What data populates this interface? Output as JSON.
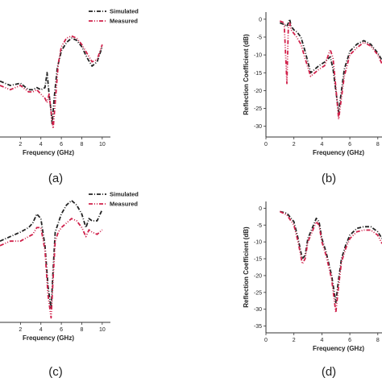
{
  "colors": {
    "simulated": "#222222",
    "measured": "#d0204a"
  },
  "chart_data": [
    {
      "panel": "(a)",
      "type": "line",
      "xlabel": "Frequency (GHz)",
      "ylabel": "",
      "xticks": [
        "2",
        "4",
        "6",
        "8",
        "10"
      ],
      "yticks": [],
      "xlim": [
        0.0,
        10.8
      ],
      "ylim": [
        -30,
        0
      ],
      "legend": {
        "placement": "top-right",
        "entries": [
          "Simulated",
          "Measured"
        ]
      },
      "series": [
        {
          "name": "Simulated",
          "x": [
            0.0,
            1.0,
            2.0,
            2.8,
            3.2,
            3.6,
            4.0,
            4.4,
            4.6,
            4.8,
            5.0,
            5.1,
            5.3,
            5.6,
            6.0,
            6.5,
            7.0,
            7.5,
            8.0,
            8.5,
            9.0,
            9.5,
            10.0
          ],
          "y": [
            -17.0,
            -18.0,
            -17.5,
            -19.0,
            -19.0,
            -18.5,
            -19.0,
            -18.5,
            -15.0,
            -20.0,
            -24.0,
            -27.0,
            -21.0,
            -14.0,
            -10.0,
            -8.0,
            -7.0,
            -7.5,
            -9.0,
            -11.5,
            -13.5,
            -12.5,
            -9.0
          ]
        },
        {
          "name": "Measured",
          "x": [
            0.0,
            1.0,
            2.0,
            2.8,
            3.2,
            3.6,
            4.0,
            4.4,
            4.6,
            4.8,
            5.0,
            5.2,
            5.4,
            5.7,
            6.0,
            6.5,
            7.0,
            7.5,
            8.0,
            8.5,
            9.0,
            9.5,
            10.0
          ],
          "y": [
            -18.0,
            -19.0,
            -18.0,
            -19.5,
            -19.5,
            -19.0,
            -20.0,
            -21.0,
            -22.0,
            -20.0,
            -24.0,
            -28.0,
            -22.0,
            -13.0,
            -9.0,
            -7.0,
            -6.5,
            -7.0,
            -8.5,
            -10.5,
            -12.5,
            -12.0,
            -8.5
          ]
        }
      ]
    },
    {
      "panel": "(b)",
      "type": "line",
      "xlabel": "Frequency (GHz)",
      "ylabel": "Reflection Coefficient (dB)",
      "xticks": [
        "0",
        "2",
        "4",
        "6",
        "8"
      ],
      "yticks": [
        "0",
        "-5",
        "-10",
        "-15",
        "-20",
        "-25",
        "-30"
      ],
      "xlim": [
        0,
        8.3
      ],
      "ylim": [
        -33,
        2
      ],
      "legend": null,
      "series": [
        {
          "name": "Simulated",
          "x": [
            1.0,
            1.3,
            1.5,
            1.6,
            1.7,
            1.8,
            2.0,
            2.2,
            2.5,
            2.8,
            3.2,
            3.8,
            4.2,
            4.6,
            4.8,
            5.0,
            5.2,
            5.4,
            5.6,
            6.0,
            6.5,
            7.0,
            7.5,
            8.0,
            8.3
          ],
          "y": [
            -1.0,
            -1.5,
            -2.0,
            -1.0,
            0.0,
            -2.0,
            -3.0,
            -3.5,
            -5.0,
            -9.0,
            -15.0,
            -13.0,
            -12.0,
            -10.5,
            -14.0,
            -20.0,
            -26.0,
            -20.0,
            -14.0,
            -9.0,
            -7.0,
            -6.0,
            -7.0,
            -9.5,
            -11.5
          ]
        },
        {
          "name": "Measured",
          "x": [
            1.0,
            1.3,
            1.5,
            1.6,
            1.7,
            1.8,
            2.0,
            2.2,
            2.5,
            2.8,
            3.2,
            3.8,
            4.2,
            4.6,
            4.8,
            5.0,
            5.2,
            5.4,
            5.6,
            6.0,
            6.5,
            7.0,
            7.5,
            8.0,
            8.3
          ],
          "y": [
            -0.5,
            -1.0,
            -18.0,
            -2.0,
            -1.0,
            -3.0,
            -4.0,
            -5.0,
            -7.0,
            -11.0,
            -16.0,
            -14.0,
            -13.0,
            -8.5,
            -11.0,
            -19.0,
            -28.0,
            -22.0,
            -16.0,
            -10.0,
            -8.0,
            -6.5,
            -7.5,
            -10.0,
            -12.5
          ]
        }
      ]
    },
    {
      "panel": "(c)",
      "type": "line",
      "xlabel": "Frequency (GHz)",
      "ylabel": "",
      "xticks": [
        "2",
        "4",
        "6",
        "8",
        "10"
      ],
      "yticks": [],
      "xlim": [
        0.0,
        10.8
      ],
      "ylim": [
        -30,
        0
      ],
      "legend": {
        "placement": "top-right",
        "entries": [
          "Simulated",
          "Measured"
        ]
      },
      "series": [
        {
          "name": "Simulated",
          "x": [
            0.0,
            1.0,
            2.0,
            2.8,
            3.2,
            3.6,
            4.0,
            4.4,
            4.7,
            5.0,
            5.2,
            5.4,
            5.7,
            6.0,
            6.5,
            7.0,
            7.5,
            8.0,
            8.4,
            8.7,
            9.0,
            9.5,
            10.0
          ],
          "y": [
            -12.0,
            -11.0,
            -10.0,
            -9.0,
            -8.0,
            -6.0,
            -7.0,
            -13.0,
            -22.0,
            -27.0,
            -18.0,
            -10.0,
            -8.0,
            -6.0,
            -4.0,
            -3.0,
            -4.0,
            -6.0,
            -9.0,
            -7.0,
            -7.5,
            -7.5,
            -5.0
          ]
        },
        {
          "name": "Measured",
          "x": [
            0.0,
            1.0,
            2.0,
            2.8,
            3.2,
            3.6,
            4.0,
            4.4,
            4.7,
            5.0,
            5.2,
            5.4,
            5.7,
            6.0,
            6.5,
            7.0,
            7.5,
            8.0,
            8.4,
            8.7,
            9.0,
            9.5,
            10.0
          ],
          "y": [
            -13.0,
            -12.0,
            -12.0,
            -11.0,
            -10.5,
            -9.0,
            -9.0,
            -14.0,
            -24.0,
            -29.0,
            -20.0,
            -12.0,
            -10.0,
            -9.0,
            -8.0,
            -7.0,
            -7.5,
            -9.0,
            -11.0,
            -9.5,
            -10.0,
            -10.5,
            -9.5
          ]
        }
      ]
    },
    {
      "panel": "(d)",
      "type": "line",
      "xlabel": "Frequency (GHz)",
      "ylabel": "Reflection Coefficient (dB)",
      "xticks": [
        "0",
        "2",
        "4",
        "6",
        "8"
      ],
      "yticks": [
        "0",
        "-5",
        "-10",
        "-15",
        "-20",
        "-25",
        "-30",
        "-35"
      ],
      "xlim": [
        0,
        8.3
      ],
      "ylim": [
        -37,
        2
      ],
      "legend": null,
      "series": [
        {
          "name": "Simulated",
          "x": [
            1.0,
            1.5,
            2.0,
            2.3,
            2.6,
            2.8,
            3.0,
            3.3,
            3.6,
            3.8,
            4.0,
            4.3,
            4.7,
            5.0,
            5.2,
            5.4,
            5.7,
            6.0,
            6.5,
            7.0,
            7.5,
            8.0,
            8.3
          ],
          "y": [
            -1.0,
            -1.5,
            -4.0,
            -9.0,
            -15.0,
            -14.0,
            -9.0,
            -6.0,
            -3.0,
            -4.0,
            -9.0,
            -13.0,
            -20.0,
            -28.0,
            -21.0,
            -15.0,
            -11.0,
            -8.0,
            -6.0,
            -5.5,
            -5.5,
            -7.0,
            -9.0
          ]
        },
        {
          "name": "Measured",
          "x": [
            1.0,
            1.5,
            2.0,
            2.3,
            2.6,
            2.8,
            3.0,
            3.3,
            3.6,
            3.8,
            4.0,
            4.3,
            4.7,
            5.0,
            5.2,
            5.4,
            5.7,
            6.0,
            6.5,
            7.0,
            7.5,
            8.0,
            8.3
          ],
          "y": [
            -1.0,
            -2.0,
            -5.0,
            -10.0,
            -16.5,
            -15.0,
            -10.0,
            -7.0,
            -4.0,
            -5.0,
            -10.0,
            -14.0,
            -21.0,
            -31.0,
            -23.0,
            -16.0,
            -12.0,
            -9.0,
            -7.0,
            -6.5,
            -6.5,
            -8.0,
            -10.5
          ]
        }
      ]
    }
  ]
}
